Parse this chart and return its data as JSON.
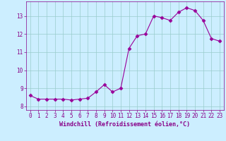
{
  "x": [
    0,
    1,
    2,
    3,
    4,
    5,
    6,
    7,
    8,
    9,
    10,
    11,
    12,
    13,
    14,
    15,
    16,
    17,
    18,
    19,
    20,
    21,
    22,
    23
  ],
  "y": [
    8.6,
    8.4,
    8.4,
    8.4,
    8.4,
    8.35,
    8.4,
    8.45,
    8.8,
    9.2,
    8.8,
    9.0,
    11.2,
    11.9,
    12.0,
    13.0,
    12.9,
    12.75,
    13.2,
    13.45,
    13.3,
    12.75,
    11.75,
    11.6
  ],
  "line_color": "#990099",
  "marker": "D",
  "markersize": 2.5,
  "bg_color": "#cceeff",
  "grid_color": "#99cccc",
  "xlabel": "Windchill (Refroidissement éolien,°C)",
  "xlim": [
    -0.5,
    23.5
  ],
  "ylim": [
    7.8,
    13.8
  ],
  "yticks": [
    8,
    9,
    10,
    11,
    12,
    13
  ],
  "xticks": [
    0,
    1,
    2,
    3,
    4,
    5,
    6,
    7,
    8,
    9,
    10,
    11,
    12,
    13,
    14,
    15,
    16,
    17,
    18,
    19,
    20,
    21,
    22,
    23
  ],
  "label_color": "#880088",
  "tick_color": "#880088",
  "font_family": "monospace",
  "tick_fontsize": 5.5,
  "xlabel_fontsize": 6.0
}
